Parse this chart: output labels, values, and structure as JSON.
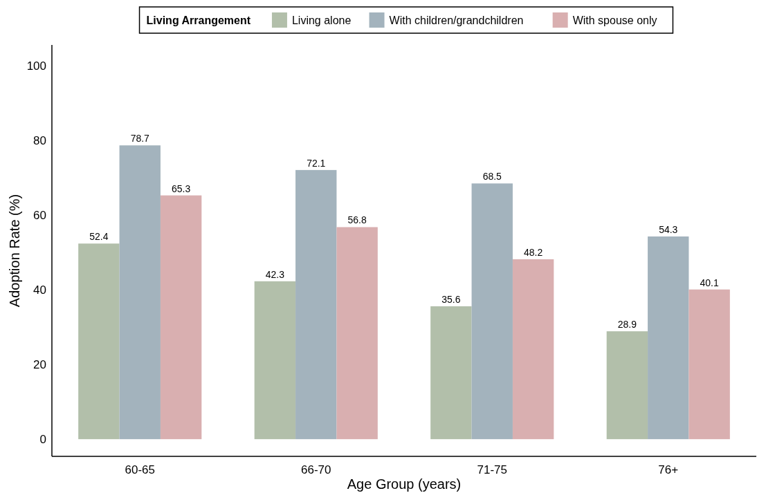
{
  "chart_data": {
    "type": "bar",
    "xlabel": "Age Group (years)",
    "ylabel": "Adoption Rate (%)",
    "legend_title": "Living Arrangement",
    "legend": "top",
    "categories": [
      "60-65",
      "66-70",
      "71-75",
      "76+"
    ],
    "series": [
      {
        "name": "Living alone",
        "color": "#b2bfaa",
        "values": [
          52.4,
          42.3,
          35.6,
          28.9
        ]
      },
      {
        "name": "With children/grandchildren",
        "color": "#a3b3bd",
        "values": [
          78.7,
          72.1,
          68.5,
          54.3
        ]
      },
      {
        "name": "With spouse only",
        "color": "#d9afb0",
        "values": [
          65.3,
          56.8,
          48.2,
          40.1
        ]
      }
    ],
    "ylim": [
      -4.6,
      105.6
    ],
    "yticks": [
      0,
      20,
      40,
      60,
      80,
      100
    ],
    "grid": false,
    "data_labels": true
  }
}
